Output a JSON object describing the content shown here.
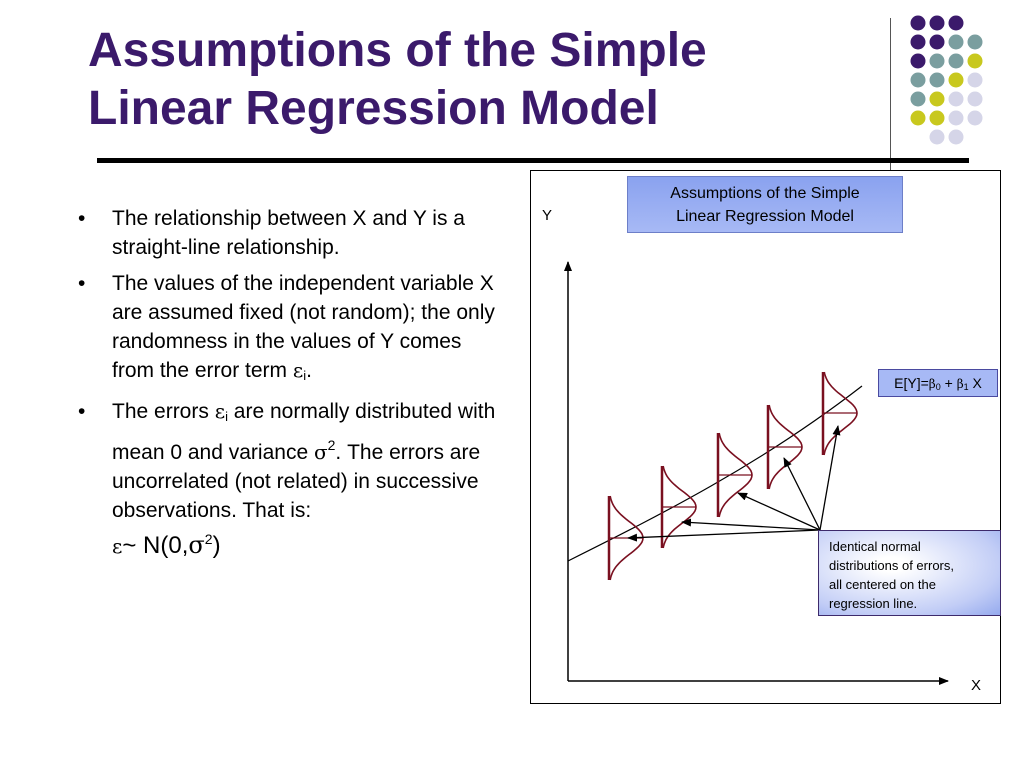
{
  "slide": {
    "title_line1": "Assumptions of the Simple",
    "title_line2": "Linear Regression Model"
  },
  "bullets": {
    "b1": "The relationship between X and Y is a straight-line relationship.",
    "b2_text": "The values of the independent variable X are assumed fixed (not random); the only randomness in the values of Y comes from the error term ",
    "b2_eps": "ε",
    "b2_sub": "i",
    "b2_end": ".",
    "b3_start": "The errors ",
    "b3_eps": "ε",
    "b3_sub": "i",
    "b3_mid": " are normally distributed with mean 0 and variance ",
    "b3_sigma": "σ",
    "b3_sq": "2",
    "b3_dot": ".",
    "b3_rest": "  The errors are uncorrelated (not related) in successive observations.  That is:",
    "b3_formula_eps": "ε",
    "b3_formula_tilde": "~ N(0,",
    "b3_formula_sigma": "σ",
    "b3_formula_sq": "2",
    "b3_formula_close": ")"
  },
  "diagram": {
    "title_line1": "Assumptions of the Simple",
    "title_line2": "Linear Regression Model",
    "y_label": "Y",
    "x_label": "X",
    "equation": {
      "lhs": "E[Y]=",
      "beta0": "β",
      "sub0": "0",
      "plus": " + ",
      "beta1": "β",
      "sub1": "1",
      "x": " X"
    },
    "note_line1": "Identical normal",
    "note_line2": "distributions of errors,",
    "note_line3": "all centered on the",
    "note_line4": "regression line."
  },
  "colors": {
    "title": "#3b1a6b",
    "curve": "#7a1020",
    "box_fill": "#a7b9f5",
    "dot_purple": "#3b1a6b",
    "dot_teal": "#7a9e9f",
    "dot_yellow": "#c8c81e",
    "dot_lavender": "#d5d5e8"
  }
}
